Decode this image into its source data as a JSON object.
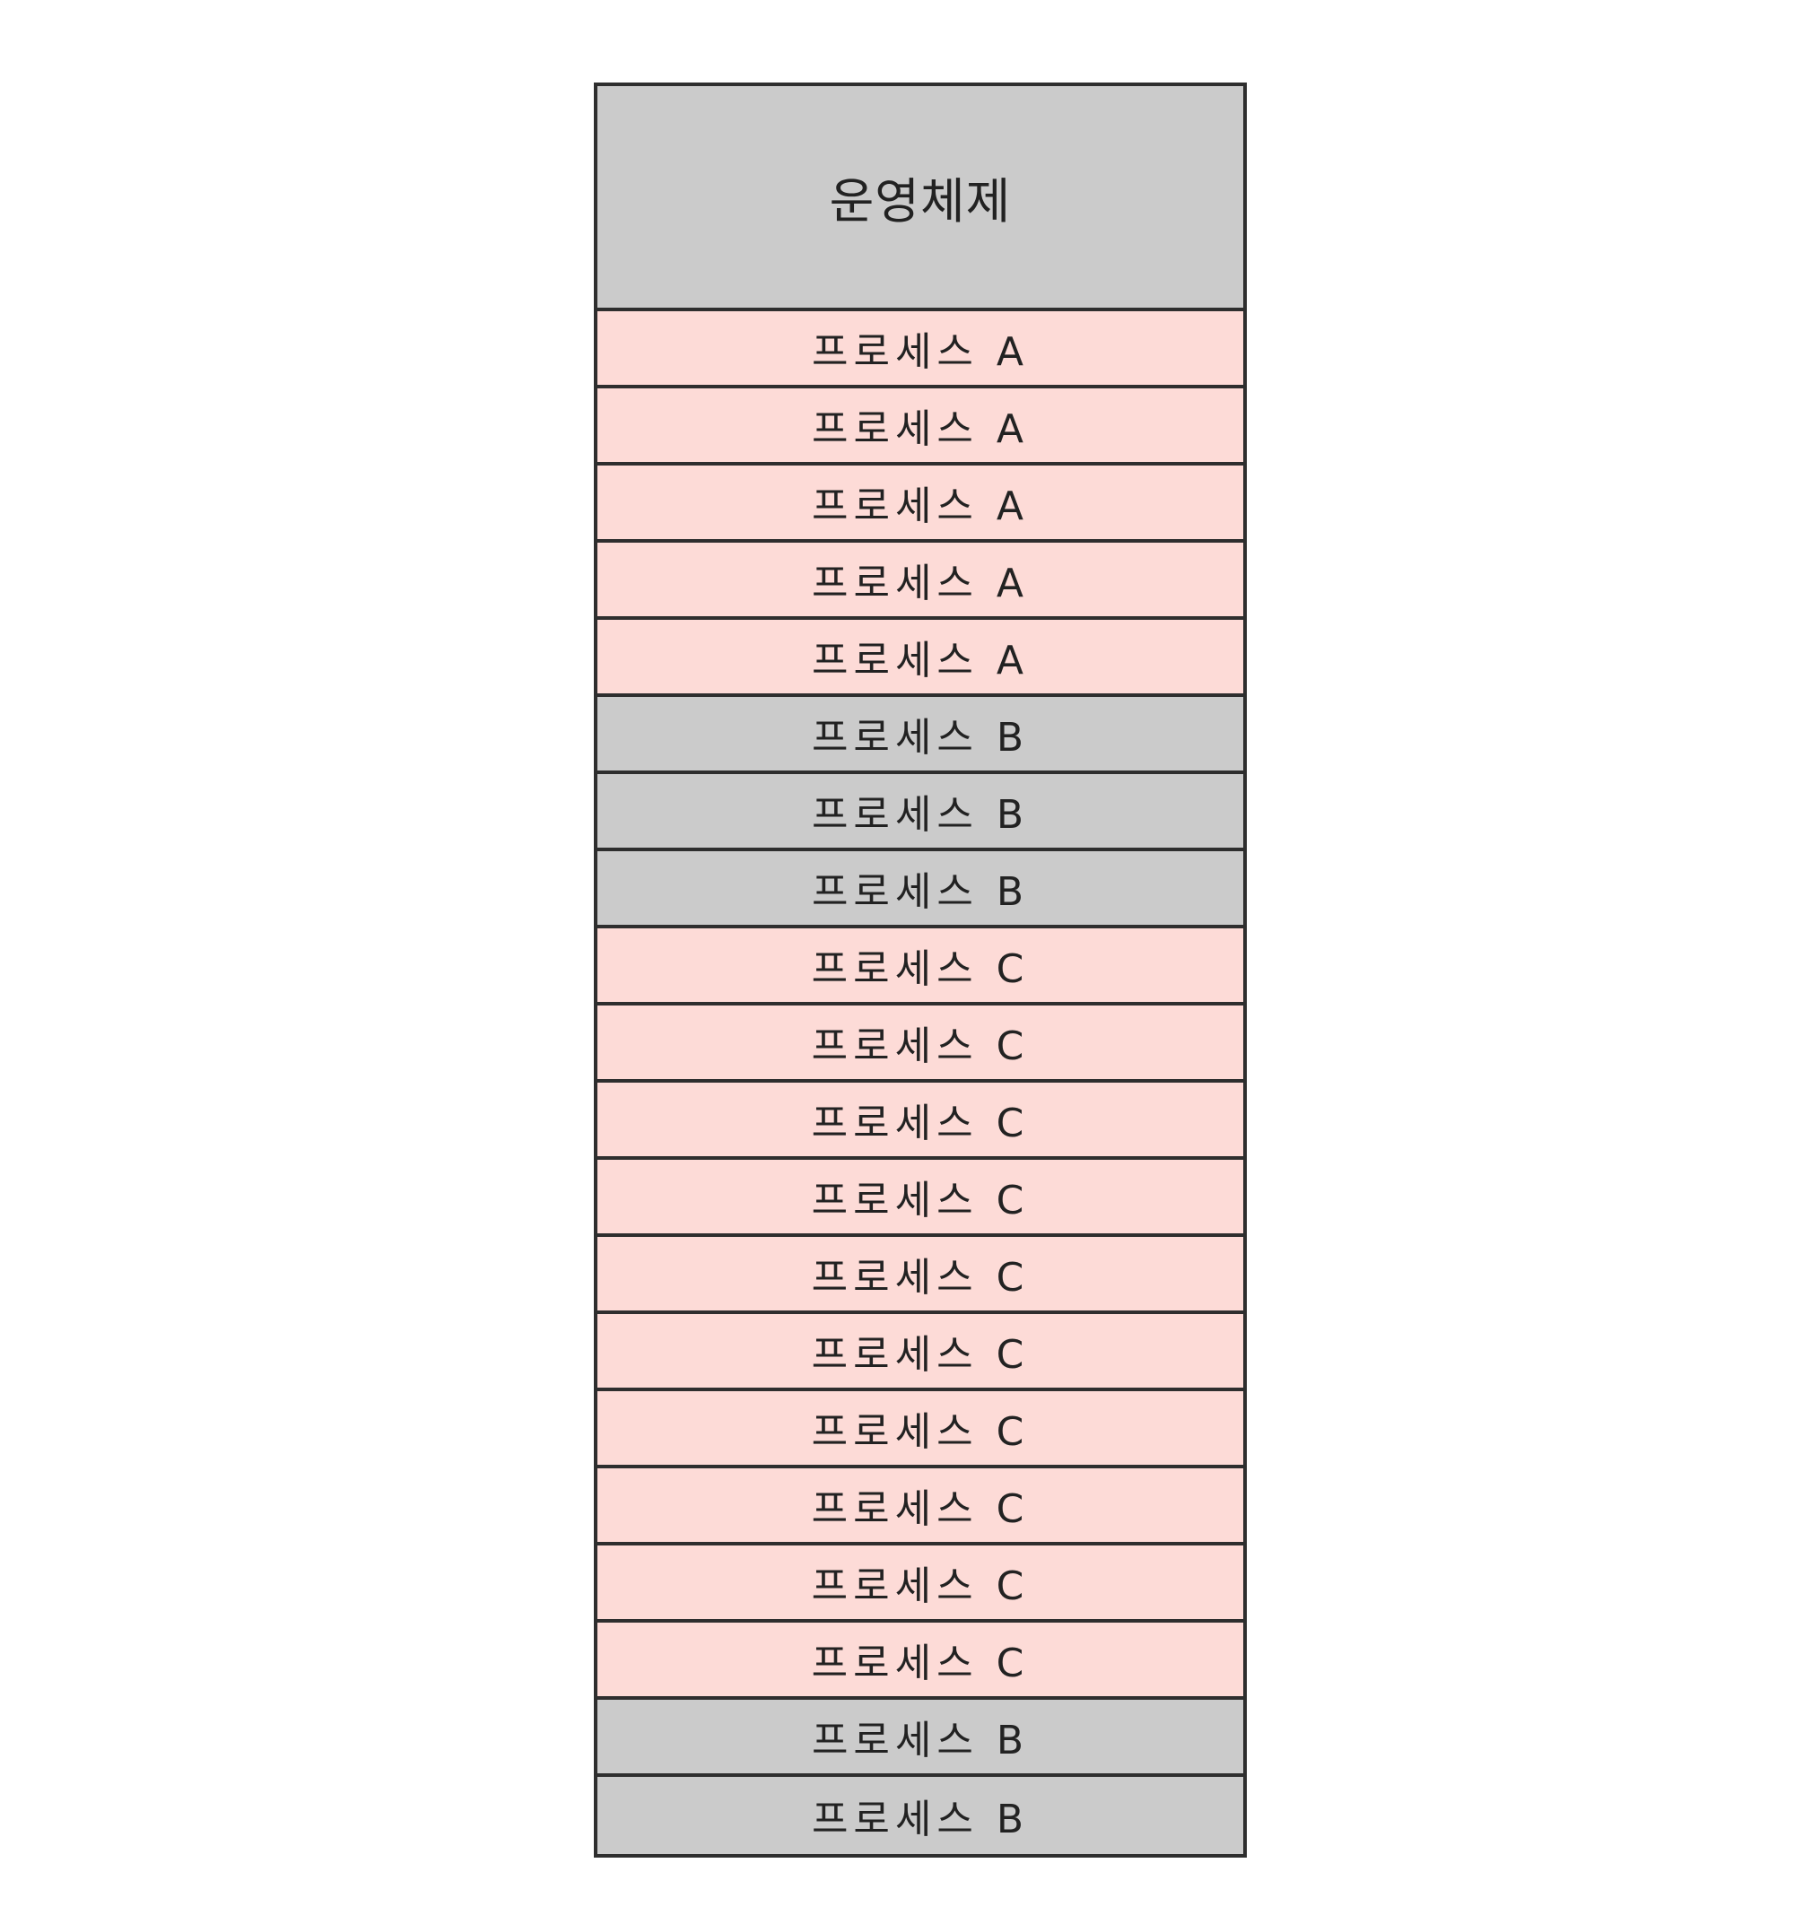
{
  "diagram": {
    "os_label": "운영체제",
    "colors": {
      "os": "#cbcbcb",
      "A": "#fddbd7",
      "B": "#cbcbcb",
      "C": "#fddbd7",
      "border": "#2e2e2e"
    },
    "rows": [
      {
        "label": "프로세스 A",
        "process": "A"
      },
      {
        "label": "프로세스 A",
        "process": "A"
      },
      {
        "label": "프로세스 A",
        "process": "A"
      },
      {
        "label": "프로세스 A",
        "process": "A"
      },
      {
        "label": "프로세스 A",
        "process": "A"
      },
      {
        "label": "프로세스 B",
        "process": "B"
      },
      {
        "label": "프로세스 B",
        "process": "B"
      },
      {
        "label": "프로세스 B",
        "process": "B"
      },
      {
        "label": "프로세스 C",
        "process": "C"
      },
      {
        "label": "프로세스 C",
        "process": "C"
      },
      {
        "label": "프로세스 C",
        "process": "C"
      },
      {
        "label": "프로세스 C",
        "process": "C"
      },
      {
        "label": "프로세스 C",
        "process": "C"
      },
      {
        "label": "프로세스 C",
        "process": "C"
      },
      {
        "label": "프로세스 C",
        "process": "C"
      },
      {
        "label": "프로세스 C",
        "process": "C"
      },
      {
        "label": "프로세스 C",
        "process": "C"
      },
      {
        "label": "프로세스 C",
        "process": "C"
      },
      {
        "label": "프로세스 B",
        "process": "B"
      },
      {
        "label": "프로세스 B",
        "process": "B"
      }
    ]
  }
}
